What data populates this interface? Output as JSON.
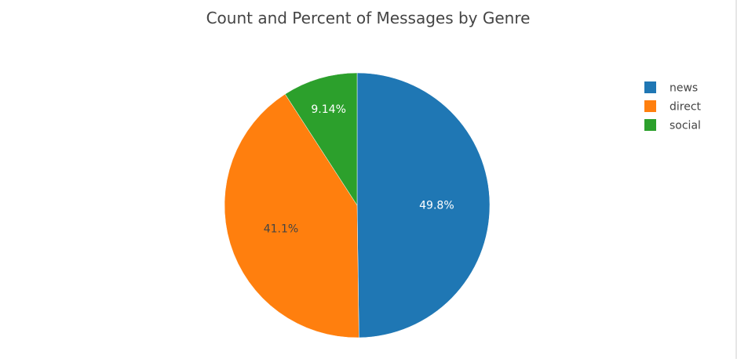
{
  "chart_data": {
    "type": "pie",
    "title": "Count and Percent of Messages by Genre",
    "slices": [
      {
        "label": "news",
        "percent": 49.8,
        "percent_text": "49.8%",
        "color": "#1f77b4",
        "text_color": "#ffffff"
      },
      {
        "label": "direct",
        "percent": 41.1,
        "percent_text": "41.1%",
        "color": "#ff7f0e",
        "text_color": "#444444"
      },
      {
        "label": "social",
        "percent": 9.14,
        "percent_text": "9.14%",
        "color": "#2ca02c",
        "text_color": "#ffffff"
      }
    ],
    "legend": {
      "placement": "top-right",
      "entries": [
        "news",
        "direct",
        "social"
      ]
    },
    "direction": "clockwise",
    "start": "12 o'clock"
  }
}
